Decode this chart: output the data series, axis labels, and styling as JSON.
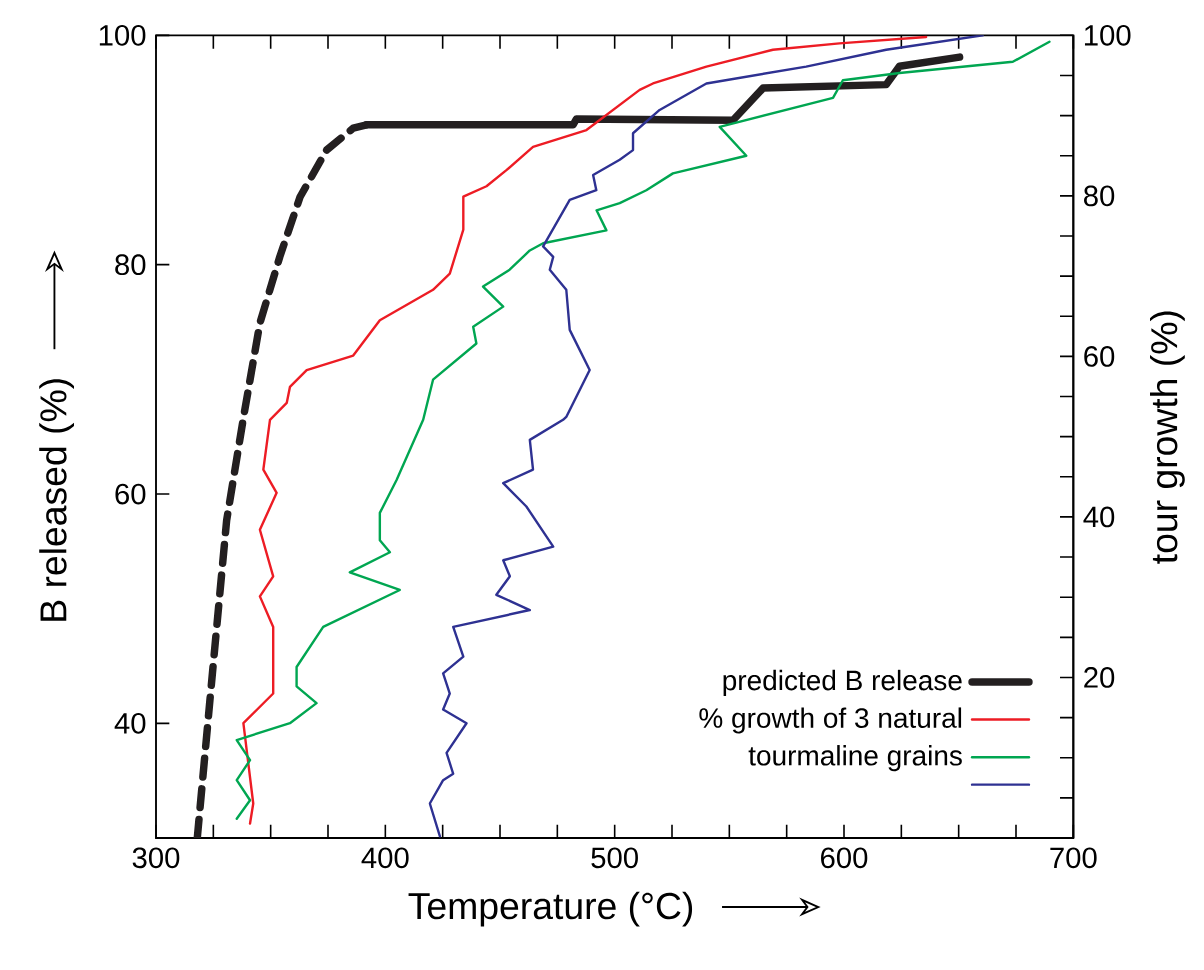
{
  "chart_data": {
    "type": "line",
    "xlabel": "Temperature (°C)",
    "ylabel": "B released (%)",
    "y2label": "tour growth (%)",
    "xlim": [
      300,
      700
    ],
    "ylim": [
      30,
      100
    ],
    "y2lim": [
      0,
      100
    ],
    "xticks": [
      300,
      {
        "value": 325,
        "label": null
      },
      {
        "value": 350,
        "label": null
      },
      {
        "value": 375,
        "label": null
      },
      400,
      {
        "value": 425,
        "label": null
      },
      {
        "value": 450,
        "label": null
      },
      {
        "value": 475,
        "label": null
      },
      500,
      {
        "value": 525,
        "label": null
      },
      {
        "value": 550,
        "label": null
      },
      {
        "value": 575,
        "label": null
      },
      600,
      {
        "value": 625,
        "label": null
      },
      {
        "value": 650,
        "label": null
      },
      {
        "value": 675,
        "label": null
      },
      700
    ],
    "yticks": [
      40,
      60,
      80,
      100
    ],
    "y2ticks": [
      {
        "value": 5,
        "label": null
      },
      {
        "value": 10,
        "label": null
      },
      {
        "value": 15,
        "label": null
      },
      20,
      {
        "value": 25,
        "label": null
      },
      {
        "value": 30,
        "label": null
      },
      {
        "value": 35,
        "label": null
      },
      40,
      {
        "value": 45,
        "label": null
      },
      {
        "value": 50,
        "label": null
      },
      {
        "value": 55,
        "label": null
      },
      60,
      {
        "value": 65,
        "label": null
      },
      {
        "value": 70,
        "label": null
      },
      {
        "value": 75,
        "label": null
      },
      80,
      {
        "value": 85,
        "label": null
      },
      {
        "value": 90,
        "label": null
      },
      {
        "value": 95,
        "label": null
      },
      100
    ],
    "legend": "bottom right",
    "series": [
      {
        "color": "#231f20",
        "axis": "y",
        "line_style": "dashed",
        "x": [
          318,
          323.5,
          330.8,
          338,
          345.3,
          354,
          362.8,
          374.4,
          386,
          391.8
        ],
        "values": [
          30,
          42,
          57.7,
          66.5,
          74.9,
          80.7,
          85.9,
          90,
          91.9,
          92.2
        ]
      },
      {
        "name": "predicted B release",
        "color": "#231f20",
        "axis": "y",
        "line_style": "solid",
        "x": [
          391.8,
          481.9,
          483.3,
          551.6,
          564.7,
          618.4,
          624.2,
          650.4
        ],
        "values": [
          92.2,
          92.2,
          92.7,
          92.6,
          95.4,
          95.7,
          97.3,
          98.1
        ]
      },
      {
        "name": "% growth of 3 natural",
        "color": "#ed1c24",
        "axis": "y2",
        "line_style": "solid",
        "x": [
          341,
          342.4,
          338.1,
          351.1,
          351.1,
          345.3,
          351.1,
          345.3,
          352.6,
          346.8,
          349.7,
          357,
          358.4,
          365.7,
          386,
          397.6,
          420.8,
          428.1,
          434,
          434,
          444.1,
          452.8,
          464.4,
          487.7,
          510.9,
          516.7,
          540,
          569,
          598,
          635.8
        ],
        "values": [
          1.8,
          4.3,
          14.3,
          18,
          26.3,
          30.1,
          32.6,
          38.4,
          43,
          45.9,
          52.1,
          54.2,
          56.2,
          58.3,
          60.1,
          64.5,
          68.3,
          70.3,
          75.8,
          79.9,
          81.2,
          83.2,
          86.1,
          88.2,
          93.2,
          94,
          96.1,
          98.2,
          99,
          99.8
        ]
      },
      {
        "name": "tourmaline grains",
        "color": "#00a651",
        "axis": "y2",
        "line_style": "solid",
        "x": [
          335.2,
          341,
          335.2,
          341,
          335.2,
          358.4,
          370,
          361.3,
          361.3,
          372.9,
          406.3,
          384.5,
          402,
          397.6,
          397.6,
          404.9,
          416.5,
          420.8,
          439.7,
          438.3,
          451.4,
          442.6,
          454.2,
          463,
          468.8,
          496.4,
          492.1,
          502.2,
          513.8,
          525.4,
          557.4,
          545.8,
          595.2,
          599.5,
          624.2,
          673.6,
          689.6
        ],
        "values": [
          2.4,
          4.7,
          7.2,
          9.7,
          12.2,
          14.3,
          16.8,
          18.9,
          21.3,
          26.3,
          30.9,
          33.1,
          35.6,
          37.1,
          40.5,
          44.6,
          52.1,
          57.1,
          61.6,
          63.7,
          66.2,
          68.7,
          70.8,
          73.2,
          74.1,
          75.7,
          78.2,
          79.1,
          80.7,
          82.8,
          85,
          88.6,
          92.2,
          94.4,
          95.3,
          96.7,
          99.2
        ]
      },
      {
        "color": "#2e3192",
        "axis": "y2",
        "line_style": "solid",
        "x": [
          423.8,
          419.4,
          425.2,
          429.6,
          426.7,
          435.4,
          425.2,
          428.1,
          425.2,
          434,
          429.6,
          463,
          448.4,
          454.3,
          451.4,
          473.2,
          461.5,
          451.4,
          464.4,
          463,
          477.5,
          479,
          489.1,
          480.4,
          478.9,
          471.7,
          473.2,
          468.8,
          480.4,
          492,
          490.6,
          502.2,
          508,
          508,
          519.6,
          540,
          583.5,
          618.4,
          660.5
        ],
        "values": [
          0.2,
          4.3,
          7.2,
          8,
          10.6,
          14.3,
          16,
          18,
          20.5,
          22.6,
          26.3,
          28.4,
          30.3,
          32.6,
          34.6,
          36.3,
          41.3,
          44.2,
          45.9,
          49.6,
          52.1,
          52.5,
          58.3,
          63.3,
          68.3,
          70.8,
          72.4,
          73.7,
          79.5,
          80.7,
          82.6,
          84.5,
          85.7,
          87.8,
          90.7,
          94,
          96.1,
          98.2,
          100
        ]
      }
    ]
  }
}
